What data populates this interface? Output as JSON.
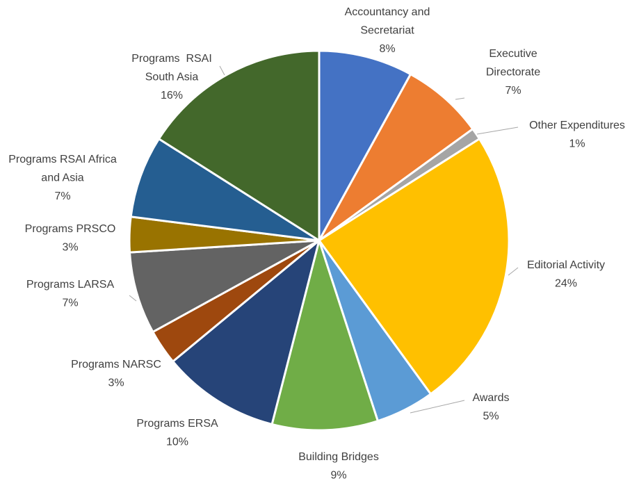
{
  "chart_data": {
    "type": "pie",
    "categories": [
      "Accountancy and Secretariat",
      "Executive Directorate",
      "Other Expenditures",
      "Editorial Activity",
      "Awards",
      "Building Bridges",
      "Programs ERSA",
      "Programs NARSC",
      "Programs LARSA",
      "Programs PRSCO",
      "Programs RSAI Africa and Asia",
      "Programs  RSAI South Asia"
    ],
    "values": [
      8,
      7,
      1,
      24,
      5,
      9,
      10,
      3,
      7,
      3,
      7,
      16
    ],
    "value_labels": [
      "8%",
      "7%",
      "1%",
      "24%",
      "5%",
      "9%",
      "10%",
      "3%",
      "7%",
      "3%",
      "7%",
      "16%"
    ],
    "colors": [
      "#4472c4",
      "#ed7d31",
      "#a5a5a5",
      "#ffc000",
      "#5b9bd5",
      "#70ad47",
      "#264478",
      "#9e480e",
      "#636363",
      "#997300",
      "#255e91",
      "#43682b"
    ]
  }
}
